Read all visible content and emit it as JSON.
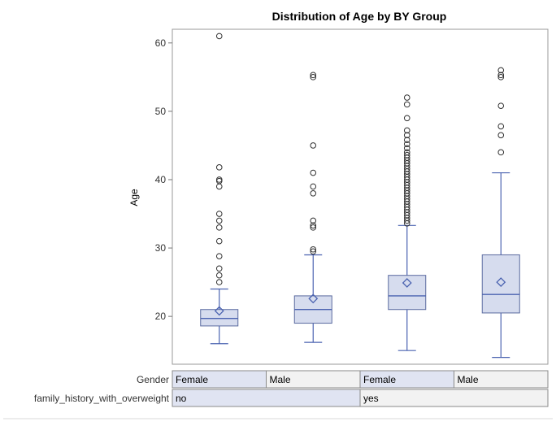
{
  "chart_data": {
    "type": "box",
    "title": "Distribution of Age by BY Group",
    "ylabel": "Age",
    "ylim": [
      13,
      62
    ],
    "yticks": [
      20,
      30,
      40,
      50,
      60
    ],
    "grid": false,
    "boxes": [
      {
        "gender": "Female",
        "family_history": "no",
        "whisker_low": 16,
        "q1": 18.6,
        "median": 19.7,
        "q3": 21,
        "whisker_high": 24,
        "mean": 20.8,
        "outliers": [
          25,
          26,
          27,
          28.8,
          31,
          33,
          34,
          35,
          39,
          39.8,
          40,
          41.8,
          61
        ]
      },
      {
        "gender": "Male",
        "family_history": "no",
        "whisker_low": 16.2,
        "q1": 19,
        "median": 21,
        "q3": 23,
        "whisker_high": 29,
        "mean": 22.6,
        "outliers": [
          29.5,
          29.8,
          33,
          33.3,
          34,
          38,
          39,
          41,
          45,
          55,
          55.3
        ]
      },
      {
        "gender": "Female",
        "family_history": "yes",
        "whisker_low": 15,
        "q1": 21,
        "median": 23,
        "q3": 26,
        "whisker_high": 33.3,
        "mean": 24.9,
        "outliers": [
          33.6,
          34,
          34.4,
          34.8,
          35.2,
          35.6,
          36,
          36.4,
          36.8,
          37.2,
          37.6,
          38,
          38.4,
          38.8,
          39.2,
          39.6,
          40,
          40.4,
          40.8,
          41.2,
          41.6,
          42,
          42.4,
          42.8,
          43.2,
          43.6,
          44,
          44.6,
          45.2,
          45.8,
          46.5,
          47.2,
          49,
          51,
          52
        ]
      },
      {
        "gender": "Male",
        "family_history": "yes",
        "whisker_low": 14,
        "q1": 20.5,
        "median": 23.2,
        "q3": 29,
        "whisker_high": 41,
        "mean": 25,
        "outliers": [
          44,
          46.5,
          47.8,
          50.8,
          55,
          55.3,
          56
        ]
      }
    ],
    "by_rows": [
      {
        "label": "Gender",
        "cells": [
          "Female",
          "Male",
          "Female",
          "Male"
        ]
      },
      {
        "label": "family_history_with_overweight",
        "cells": [
          "no",
          "yes"
        ]
      }
    ],
    "colors": {
      "box_fill": "#d6dcee",
      "box_stroke": "#5a6a9f",
      "line": "#4a62b0",
      "mean_marker": "#4a62b0",
      "outlier": "#333333",
      "cell_alt": "#e0e4f2",
      "cell_plain": "#f2f2f2"
    }
  }
}
